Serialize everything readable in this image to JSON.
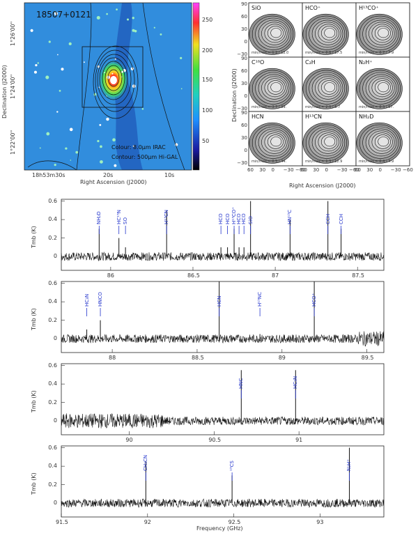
{
  "image_panel": {
    "source_name": "18507+0121",
    "colour_legend": "Colour: 8.0μm IRAC",
    "contour_legend": "Contour: 500μm Hi-GAL",
    "xlabel": "Right Ascension (J2000)",
    "ylabel": "Declination (J2000)",
    "xticks": [
      "18h53m30s",
      "20s",
      "10s"
    ],
    "yticks": [
      "1°26'00\"",
      "1°24'00\"",
      "1°22'00\""
    ],
    "colorbar_ticks": [
      "250",
      "200",
      "150",
      "100",
      "50"
    ]
  },
  "map_grid": {
    "xlabel": "Right Ascension (J2000)",
    "ylabel": "Declination (J2000)",
    "xticks": [
      "60",
      "30",
      "0",
      "−30",
      "−60"
    ],
    "yticks": [
      "90",
      "60",
      "30",
      "0",
      "−30"
    ],
    "panels": [
      {
        "label": "SiO",
        "minmax": "min/max = 1.2 / 12.0"
      },
      {
        "label": "HCO⁺",
        "minmax": "min/max = 0.8 / 17.5"
      },
      {
        "label": "H¹³CO⁺",
        "minmax": "min/max = 0.7 / 7.9"
      },
      {
        "label": "C¹⁸O",
        "minmax": "min/max = 3.7 / 39."
      },
      {
        "label": "C₂H",
        "minmax": "min/max = 2.0 / 6.7"
      },
      {
        "label": "N₂H⁺",
        "minmax": "min/max = 8.3 / 67."
      },
      {
        "label": "HCN",
        "minmax": "min/max = 0.5 / 44."
      },
      {
        "label": "H¹³CN",
        "minmax": "min/max = 1.3 / 12.9"
      },
      {
        "label": "NH₂D",
        "minmax": "min/max = 0.4 / 4.9"
      }
    ]
  },
  "spectra": {
    "ylabel": "Tmb (K)",
    "xlabel": "Frequency (GHz)",
    "yticks": [
      "0.6",
      "0.4",
      "0.2",
      "0"
    ],
    "panels": [
      {
        "xmin": 85.7,
        "xmax": 87.66,
        "xticks": [
          "86",
          "86.5",
          "87",
          "87.5"
        ],
        "lines": [
          {
            "name": "NH₂D",
            "freq": 85.93,
            "peak": 0.3
          },
          {
            "name": "HC¹⁵N",
            "freq": 86.05,
            "peak": 0.2
          },
          {
            "name": "SO",
            "freq": 86.09,
            "peak": 0.1
          },
          {
            "name": "H¹³CN",
            "freq": 86.34,
            "peak": 0.5
          },
          {
            "name": "HCO",
            "freq": 86.67,
            "peak": 0.1
          },
          {
            "name": "HCO",
            "freq": 86.71,
            "peak": 0.1
          },
          {
            "name": "H¹³CO⁺",
            "freq": 86.75,
            "peak": 0.3
          },
          {
            "name": "HCO",
            "freq": 86.78,
            "peak": 0.1
          },
          {
            "name": "HCO",
            "freq": 86.81,
            "peak": 0.1
          },
          {
            "name": "SiO",
            "freq": 86.85,
            "peak": 0.6
          },
          {
            "name": "HN¹³C",
            "freq": 87.09,
            "peak": 0.4
          },
          {
            "name": "CCH",
            "freq": 87.32,
            "peak": 0.6
          },
          {
            "name": "CCH",
            "freq": 87.4,
            "peak": 0.3
          }
        ]
      },
      {
        "xmin": 87.7,
        "xmax": 89.6,
        "xticks": [
          "88",
          "88.5",
          "89",
          "89.5"
        ],
        "lines": [
          {
            "name": "HC₃N",
            "freq": 87.85,
            "peak": 0.1
          },
          {
            "name": "HNCO",
            "freq": 87.93,
            "peak": 0.2
          },
          {
            "name": "HCN",
            "freq": 88.63,
            "peak": 0.62
          },
          {
            "name": "H¹⁵NC",
            "freq": 88.87,
            "peak": 0.05
          },
          {
            "name": "HCO⁺",
            "freq": 89.19,
            "peak": 0.62
          }
        ]
      },
      {
        "xmin": 89.6,
        "xmax": 91.5,
        "xticks": [
          "90",
          "90.5",
          "91"
        ],
        "lines": [
          {
            "name": "HNC",
            "freq": 90.66,
            "peak": 0.55
          },
          {
            "name": "HC₃N",
            "freq": 90.98,
            "peak": 0.55
          }
        ]
      },
      {
        "xmin": 91.5,
        "xmax": 93.37,
        "xticks": [
          "91.5",
          "92",
          "92.5",
          "93"
        ],
        "lines": [
          {
            "name": "CH₃CN",
            "freq": 91.99,
            "peak": 0.45
          },
          {
            "name": "¹³CS",
            "freq": 92.49,
            "peak": 0.3
          },
          {
            "name": "N₂H⁺",
            "freq": 93.17,
            "peak": 0.6
          }
        ]
      }
    ]
  }
}
